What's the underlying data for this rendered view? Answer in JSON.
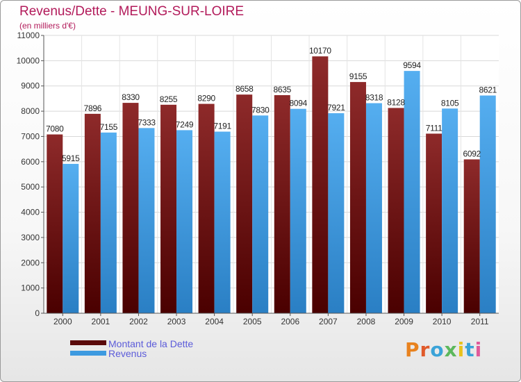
{
  "header": {
    "title": "Revenus/Dette - MEUNG-SUR-LOIRE",
    "subtitle": "(en milliers d'€)"
  },
  "colors": {
    "dette": "#7a1c1c",
    "revenus": "#3d9ae0",
    "title": "#b21a5a",
    "legend_text": "#5b5bd9"
  },
  "legend": {
    "dette_label": "Montant de la Dette",
    "revenus_label": "Revenus"
  },
  "logo": {
    "text": "Proxiti"
  },
  "chart_data": {
    "type": "bar",
    "title": "Revenus/Dette - MEUNG-SUR-LOIRE",
    "ylabel": "(en milliers d'€)",
    "xlabel": "",
    "ylim": [
      0,
      11000
    ],
    "yticks": [
      0,
      1000,
      2000,
      3000,
      4000,
      5000,
      6000,
      7000,
      8000,
      9000,
      10000,
      11000
    ],
    "grid": true,
    "legend_position": "bottom-left",
    "categories": [
      "2000",
      "2001",
      "2002",
      "2003",
      "2004",
      "2005",
      "2006",
      "2007",
      "2008",
      "2009",
      "2010",
      "2011"
    ],
    "series": [
      {
        "name": "Montant de la Dette",
        "values": [
          7080,
          7896,
          8330,
          8255,
          8290,
          8658,
          8635,
          10170,
          9155,
          8128,
          7111,
          6092
        ]
      },
      {
        "name": "Revenus",
        "values": [
          5915,
          7155,
          7333,
          7249,
          7191,
          7830,
          8094,
          7921,
          8318,
          9594,
          8105,
          8621
        ]
      }
    ]
  }
}
